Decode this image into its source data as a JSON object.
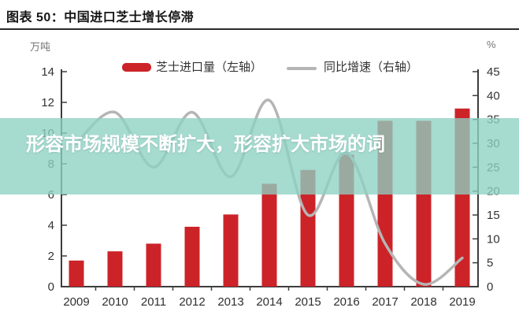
{
  "page": {
    "title": "图表 50：中国进口芝士增长停滞"
  },
  "overlay": {
    "text": "形容市场规模不断扩大，形容扩大市场的词",
    "band_color": "rgba(141,209,195,0.78)",
    "text_color": "#ffffff"
  },
  "chart_data": {
    "type": "bar",
    "title": "图表 50：中国进口芝士增长停滞",
    "categories": [
      "2009",
      "2010",
      "2011",
      "2012",
      "2013",
      "2014",
      "2015",
      "2016",
      "2017",
      "2018",
      "2019"
    ],
    "series": [
      {
        "name": "芝士进口量（左轴）",
        "type": "bar",
        "axis": "left",
        "color": "#cc2328",
        "values": [
          1.7,
          2.3,
          2.8,
          3.9,
          4.7,
          6.7,
          7.6,
          8.6,
          10.8,
          10.8,
          11.6
        ]
      },
      {
        "name": "同比增速（右轴）",
        "type": "line",
        "axis": "right",
        "color": "#b5b5b5",
        "values": [
          30,
          36.5,
          25,
          36.5,
          23,
          39,
          15,
          28,
          9,
          0.5,
          6
        ]
      }
    ],
    "xlabel": "",
    "ylabel": "万吨",
    "y2label": "%",
    "left_axis": {
      "unit": "万吨",
      "min": 0,
      "max": 14,
      "ticks": [
        0,
        2,
        4,
        6,
        8,
        10,
        12,
        14
      ]
    },
    "right_axis": {
      "unit": "%",
      "min": 0,
      "max": 45,
      "ticks": [
        0,
        5,
        10,
        15,
        20,
        25,
        30,
        35,
        40,
        45
      ]
    },
    "grid": false,
    "legend_position": "top",
    "axis_color": "#3d3d3d",
    "label_color": "#333333"
  }
}
